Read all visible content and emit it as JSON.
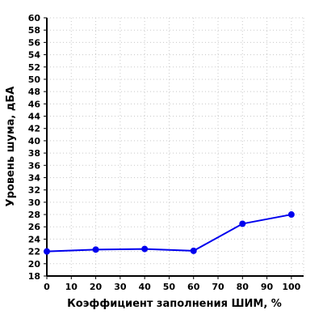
{
  "chart_data": {
    "type": "line",
    "title": "",
    "xlabel": "Коэффициент заполнения ШИМ, %",
    "ylabel": "Уровень шума, дБА",
    "x": [
      0,
      20,
      40,
      60,
      80,
      100
    ],
    "series": [
      {
        "values": [
          22.0,
          22.3,
          22.4,
          22.1,
          26.5,
          28.0
        ],
        "color": "#0000ee",
        "marker": "circle"
      }
    ],
    "xlim": [
      0,
      105
    ],
    "ylim": [
      18,
      60
    ],
    "x_ticks": [
      0,
      10,
      20,
      30,
      40,
      50,
      60,
      70,
      80,
      90,
      100
    ],
    "x_tick_labels": [
      "0",
      "10",
      "20",
      "30",
      "40",
      "50",
      "60",
      "70",
      "80",
      "90",
      "100"
    ],
    "y_ticks": [
      18,
      20,
      22,
      24,
      26,
      28,
      30,
      32,
      34,
      36,
      38,
      40,
      42,
      44,
      46,
      48,
      50,
      52,
      54,
      56,
      58,
      60
    ],
    "y_tick_labels": [
      "18",
      "20",
      "22",
      "24",
      "26",
      "28",
      "30",
      "32",
      "34",
      "36",
      "38",
      "40",
      "42",
      "44",
      "46",
      "48",
      "50",
      "52",
      "54",
      "56",
      "58",
      "60"
    ],
    "grid": true,
    "grid_style": "dotted",
    "axis_color": "#000000",
    "grid_color": "#c8c8c8"
  }
}
